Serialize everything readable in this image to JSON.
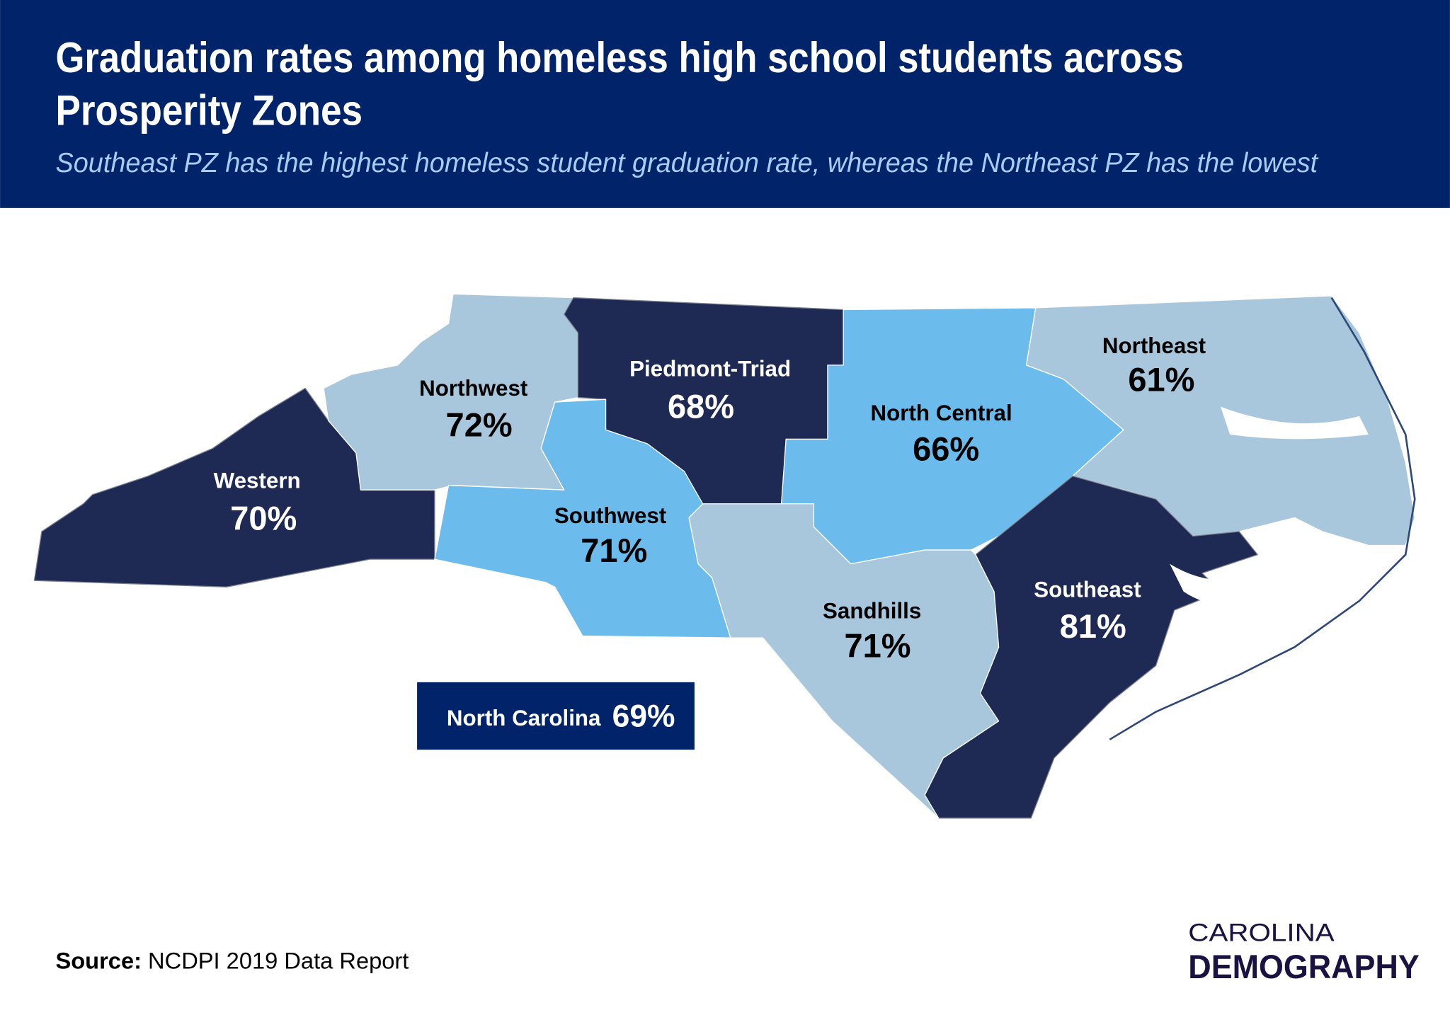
{
  "header": {
    "title_line1": "Graduation rates among homeless high school students across",
    "title_line2": "Prosperity Zones",
    "subtitle": "Southeast PZ has the highest homeless student graduation rate, whereas the Northeast PZ has the lowest"
  },
  "colors": {
    "header_bg": "#00236a",
    "subtitle": "#a9cdf2",
    "highest_band": "#1f2a54",
    "middle_band": "#6bbcec",
    "lowest_band": "#a9c7dc",
    "logo": "#1a1240"
  },
  "regions": [
    {
      "name": "Western",
      "value": "70%",
      "fill": "#1f2a54",
      "text_color": "#ffffff"
    },
    {
      "name": "Northwest",
      "value": "72%",
      "fill": "#a9c7dc",
      "text_color": "#000000"
    },
    {
      "name": "Piedmont-Triad",
      "value": "68%",
      "fill": "#1f2a54",
      "text_color": "#ffffff"
    },
    {
      "name": "Southwest",
      "value": "71%",
      "fill": "#6bbcec",
      "text_color": "#000000"
    },
    {
      "name": "North Central",
      "value": "66%",
      "fill": "#6bbcec",
      "text_color": "#000000"
    },
    {
      "name": "Northeast",
      "value": "61%",
      "fill": "#a9c7dc",
      "text_color": "#000000"
    },
    {
      "name": "Sandhills",
      "value": "71%",
      "fill": "#a9c7dc",
      "text_color": "#000000"
    },
    {
      "name": "Southeast",
      "value": "81%",
      "fill": "#1f2a54",
      "text_color": "#ffffff"
    }
  ],
  "state_total": {
    "label": "North Carolina",
    "value": "69%"
  },
  "source": {
    "label": "Source:",
    "text": "NCDPI 2019 Data Report"
  },
  "logo": {
    "line1": "CAROLINA",
    "line2": "DEMOGRAPHY"
  }
}
